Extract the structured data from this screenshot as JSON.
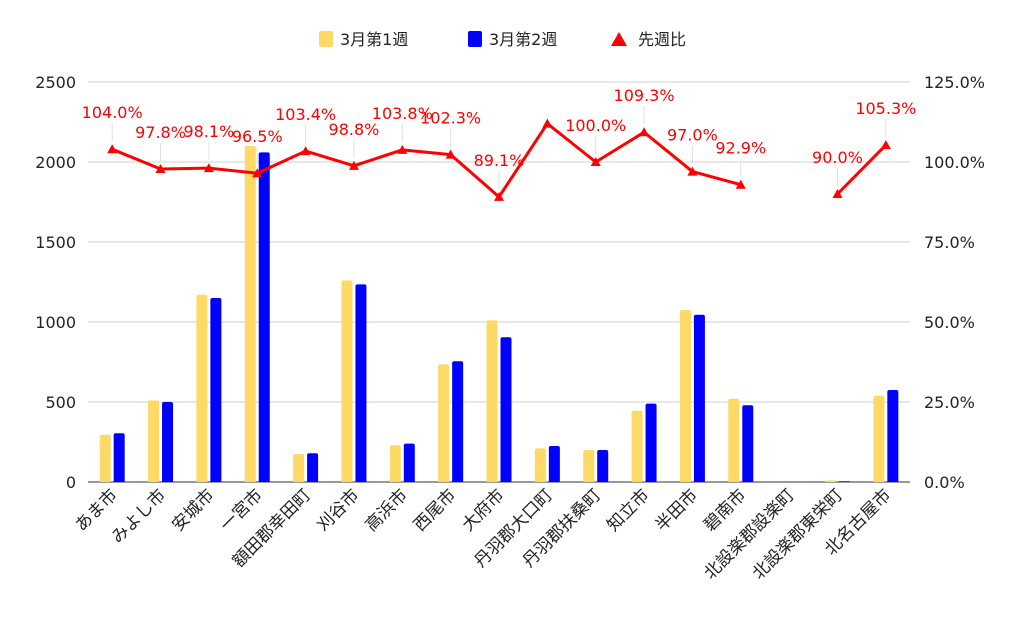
{
  "chart_data": {
    "type": "bar",
    "categories": [
      "あま市",
      "みよし市",
      "安城市",
      "一宮市",
      "額田郡幸田町",
      "刈谷市",
      "高浜市",
      "西尾市",
      "大府市",
      "丹羽郡大口町",
      "丹羽郡扶桑町",
      "知立市",
      "半田市",
      "碧南市",
      "北設楽郡設楽町",
      "北設楽郡東栄町",
      "北名古屋市"
    ],
    "series": [
      {
        "name": "3月第1週",
        "type": "bar",
        "axis": "left",
        "color": "#FFD966",
        "values": [
          295,
          510,
          1170,
          2100,
          175,
          1260,
          230,
          735,
          1010,
          210,
          200,
          445,
          1075,
          520,
          0,
          10,
          540
        ]
      },
      {
        "name": "3月第2週",
        "type": "bar",
        "axis": "left",
        "color": "#0000FF",
        "values": [
          305,
          500,
          1150,
          2060,
          180,
          1235,
          240,
          755,
          905,
          225,
          200,
          490,
          1045,
          480,
          0,
          5,
          575
        ]
      },
      {
        "name": "先週比",
        "type": "line",
        "axis": "right",
        "color": "#FF0000",
        "values": [
          104.0,
          97.8,
          98.1,
          96.5,
          103.4,
          98.8,
          103.8,
          102.3,
          89.1,
          112.0,
          100.0,
          109.3,
          97.0,
          92.9,
          null,
          90.0,
          105.3
        ],
        "labels": [
          "104.0%",
          "97.8%",
          "98.1%",
          "96.5%",
          "103.4%",
          "98.8%",
          "103.8%",
          "102.3%",
          "89.1%",
          "",
          "100.0%",
          "109.3%",
          "97.0%",
          "92.9%",
          "",
          "90.0%",
          "105.3%"
        ]
      }
    ],
    "y_left": {
      "min": 0,
      "max": 2500,
      "ticks": [
        0,
        500,
        1000,
        1500,
        2000,
        2500
      ]
    },
    "y_right": {
      "min": 0,
      "max": 125,
      "ticks": [
        0,
        25,
        50,
        75,
        100,
        125
      ],
      "tick_labels": [
        "0.0%",
        "25.0%",
        "50.0%",
        "75.0%",
        "100.0%",
        "125.0%"
      ]
    },
    "grid": true,
    "legend_position": "top",
    "title": "",
    "xlabel": "",
    "ylabel": ""
  }
}
